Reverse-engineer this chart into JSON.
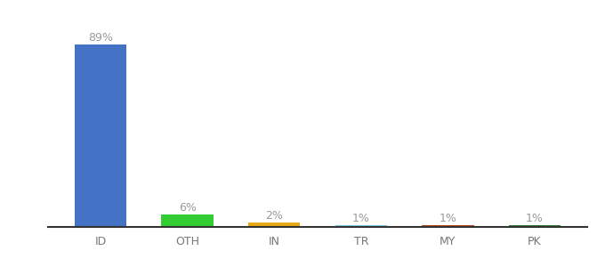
{
  "categories": [
    "ID",
    "OTH",
    "IN",
    "TR",
    "MY",
    "PK"
  ],
  "values": [
    89,
    6,
    2,
    1,
    1,
    1
  ],
  "bar_colors": [
    "#4472c4",
    "#33cc33",
    "#e6a817",
    "#7ec8e3",
    "#b5451b",
    "#2d7a2d"
  ],
  "labels": [
    "89%",
    "6%",
    "2%",
    "1%",
    "1%",
    "1%"
  ],
  "ylim": [
    0,
    95
  ],
  "background_color": "#ffffff",
  "label_color": "#999999",
  "label_fontsize": 9,
  "tick_color": "#777777",
  "tick_fontsize": 9,
  "bar_width": 0.6,
  "bottom_spine_color": "#333333"
}
